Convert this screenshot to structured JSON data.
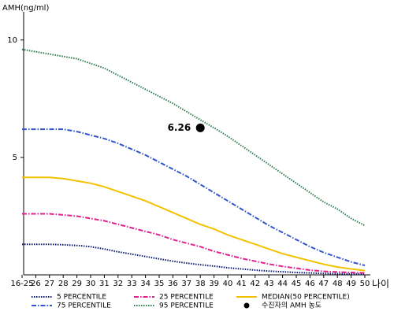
{
  "chart_data": {
    "type": "line",
    "y_label": "AMH(ng/ml)",
    "x_label": "나이",
    "categories": [
      "16-25",
      "26",
      "27",
      "28",
      "29",
      "30",
      "31",
      "32",
      "33",
      "34",
      "35",
      "36",
      "37",
      "38",
      "39",
      "40",
      "41",
      "42",
      "43",
      "44",
      "45",
      "46",
      "47",
      "48",
      "49",
      "50"
    ],
    "series": [
      {
        "name": "5 PERCENTILE",
        "color": "#0b1a72",
        "dash": "dotted",
        "values": [
          1.3,
          1.3,
          1.3,
          1.28,
          1.25,
          1.2,
          1.1,
          0.98,
          0.88,
          0.78,
          0.68,
          0.58,
          0.5,
          0.43,
          0.37,
          0.3,
          0.25,
          0.2,
          0.16,
          0.13,
          0.1,
          0.08,
          0.06,
          0.05,
          0.04,
          0.03
        ]
      },
      {
        "name": "25 PERCENTILE",
        "color": "#e0208c",
        "dash": "dashdot",
        "values": [
          2.6,
          2.6,
          2.6,
          2.55,
          2.5,
          2.4,
          2.3,
          2.15,
          2.0,
          1.85,
          1.7,
          1.5,
          1.35,
          1.2,
          1.0,
          0.85,
          0.7,
          0.58,
          0.46,
          0.36,
          0.28,
          0.2,
          0.15,
          0.12,
          0.1,
          0.08
        ]
      },
      {
        "name": "MEDIAN(50 PERCENTILE)",
        "color": "#f2c200",
        "dash": "solid",
        "values": [
          4.15,
          4.15,
          4.15,
          4.1,
          4.0,
          3.9,
          3.75,
          3.55,
          3.35,
          3.15,
          2.9,
          2.65,
          2.4,
          2.15,
          1.95,
          1.7,
          1.5,
          1.3,
          1.1,
          0.9,
          0.75,
          0.6,
          0.45,
          0.33,
          0.25,
          0.18
        ]
      },
      {
        "name": "75 PERCENTILE",
        "color": "#3355cc",
        "dash": "dashdot",
        "values": [
          6.2,
          6.2,
          6.2,
          6.2,
          6.1,
          5.95,
          5.8,
          5.6,
          5.35,
          5.1,
          4.8,
          4.5,
          4.2,
          3.85,
          3.5,
          3.15,
          2.8,
          2.45,
          2.1,
          1.8,
          1.5,
          1.2,
          0.95,
          0.75,
          0.55,
          0.4
        ]
      },
      {
        "name": "95 PERCENTILE",
        "color": "#2e7d4f",
        "dash": "dotted",
        "values": [
          9.6,
          9.5,
          9.4,
          9.3,
          9.2,
          9.0,
          8.8,
          8.5,
          8.2,
          7.9,
          7.6,
          7.3,
          6.95,
          6.6,
          6.26,
          5.9,
          5.5,
          5.1,
          4.7,
          4.3,
          3.9,
          3.5,
          3.1,
          2.8,
          2.4,
          2.1
        ]
      }
    ],
    "marker": {
      "name": "수진자의 AMH 농도",
      "x": "38",
      "value": 6.26,
      "color": "#000000"
    },
    "ylim": [
      0,
      11.2
    ],
    "yticks": [
      5,
      10
    ]
  }
}
